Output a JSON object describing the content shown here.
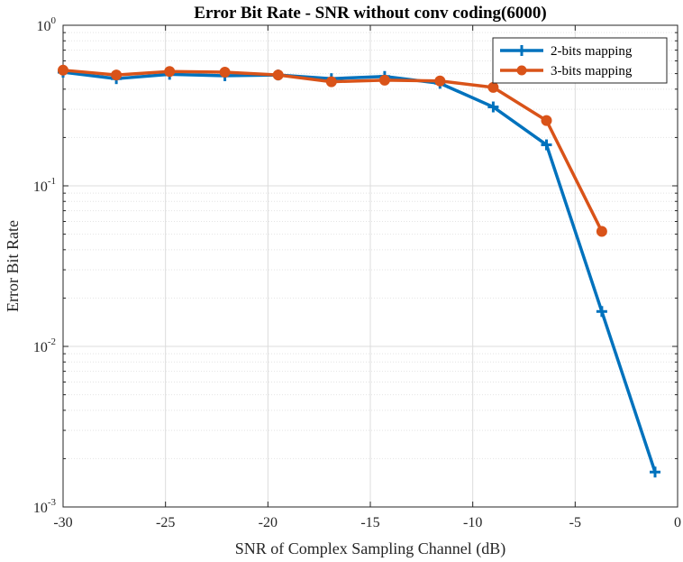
{
  "chart_data": {
    "type": "line",
    "title": "Error Bit Rate - SNR without conv coding(6000)",
    "xlabel": "SNR of Complex Sampling Channel (dB)",
    "ylabel": "Error Bit Rate",
    "xlim": [
      -30,
      0
    ],
    "ylim": [
      0.001,
      1
    ],
    "yscale": "log",
    "grid": true,
    "legend_position": "top-right",
    "x_ticks": [
      -30,
      -25,
      -20,
      -15,
      -10,
      -5,
      0
    ],
    "x_tick_labels": [
      "-30",
      "-25",
      "-20",
      "-15",
      "-10",
      "-5",
      "0"
    ],
    "y_ticks": [
      {
        "value": 1,
        "base": "10",
        "exp": "0"
      },
      {
        "value": 0.1,
        "base": "10",
        "exp": "-1"
      },
      {
        "value": 0.01,
        "base": "10",
        "exp": "-2"
      },
      {
        "value": 0.001,
        "base": "10",
        "exp": "-3"
      }
    ],
    "series": [
      {
        "name": "2-bits mapping",
        "color": "#0072BD",
        "marker": "plus",
        "x": [
          -30,
          -27.4,
          -24.8,
          -22.1,
          -19.5,
          -16.9,
          -14.3,
          -11.6,
          -9.0,
          -6.4,
          -3.7,
          -1.1
        ],
        "y": [
          0.51,
          0.465,
          0.495,
          0.485,
          0.49,
          0.465,
          0.48,
          0.435,
          0.31,
          0.18,
          0.0165,
          0.00165
        ]
      },
      {
        "name": "3-bits mapping",
        "color": "#D95319",
        "marker": "circle",
        "x": [
          -30,
          -27.4,
          -24.8,
          -22.1,
          -19.5,
          -16.9,
          -14.3,
          -11.6,
          -9.0,
          -6.4,
          -3.7
        ],
        "y": [
          0.525,
          0.49,
          0.515,
          0.51,
          0.49,
          0.445,
          0.455,
          0.45,
          0.41,
          0.255,
          0.052
        ]
      }
    ]
  }
}
